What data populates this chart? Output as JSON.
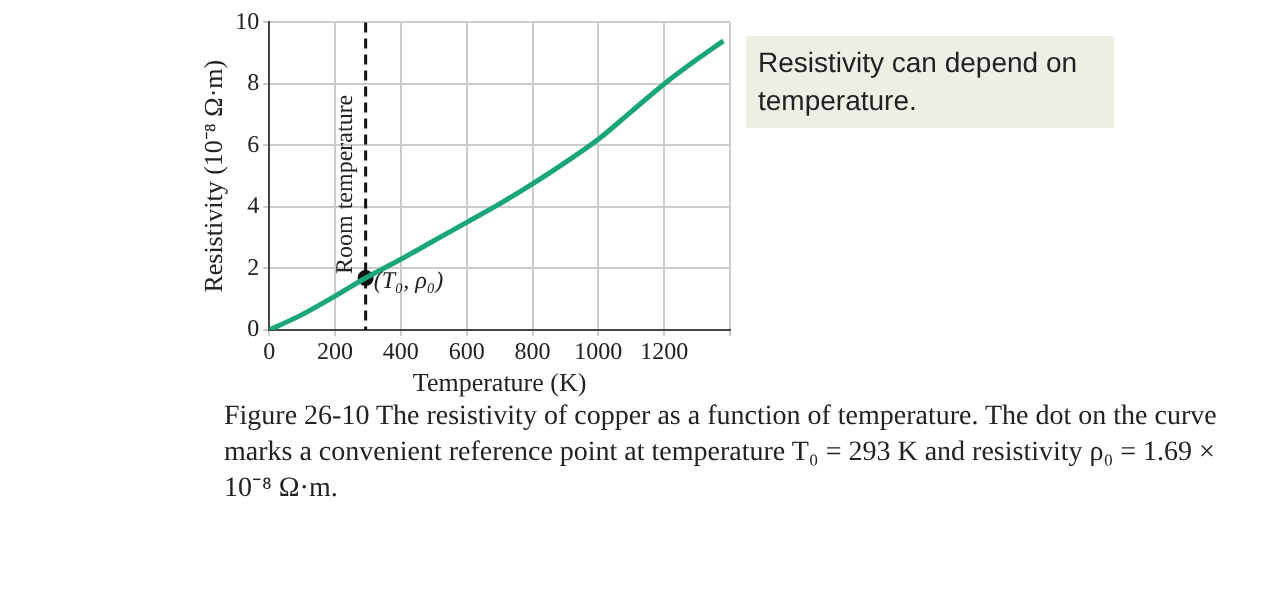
{
  "chart_data": {
    "type": "line",
    "xlabel": "Temperature (K)",
    "ylabel": "Resistivity (10⁻⁸ Ω·m)",
    "xlim": [
      0,
      1400
    ],
    "xticks": [
      0,
      200,
      400,
      600,
      800,
      1000,
      1200,
      {
        "value": 1400,
        "label": null
      }
    ],
    "ylim": [
      0,
      10
    ],
    "yticks": [
      0,
      2,
      4,
      6,
      8,
      10
    ],
    "grid": true,
    "legend": false,
    "series": [
      {
        "color": "#1aa57a",
        "marker": "none",
        "x": [
          0,
          100,
          200,
          293,
          400,
          500,
          600,
          700,
          800,
          900,
          1000,
          1100,
          1200,
          1300,
          1380
        ],
        "values": [
          0,
          0.5,
          1.1,
          1.69,
          2.3,
          2.9,
          3.5,
          4.1,
          4.75,
          5.45,
          6.2,
          7.1,
          8.0,
          8.8,
          9.4
        ]
      },
      {
        "type": "scatter",
        "color": "#111111",
        "marker": "circle",
        "x": [
          293
        ],
        "values": [
          1.69
        ]
      }
    ],
    "ref_lines": [
      {
        "axis": "x",
        "value": 293,
        "label": "Room temperature",
        "color": "#111111",
        "line_style": "dashed"
      }
    ],
    "annotations": [
      {
        "text": "(T₀, ρ₀)",
        "x": 293,
        "y": 1.69
      },
      "Resistivity can depend on temperature.",
      "Figure 26-10 The resistivity of copper as a function of temperature. The dot on the curve marks a convenient reference point at temperature T₀ = 293 K and resistivity ρ₀ = 1.69 × 10⁻⁸ Ω·m."
    ]
  }
}
